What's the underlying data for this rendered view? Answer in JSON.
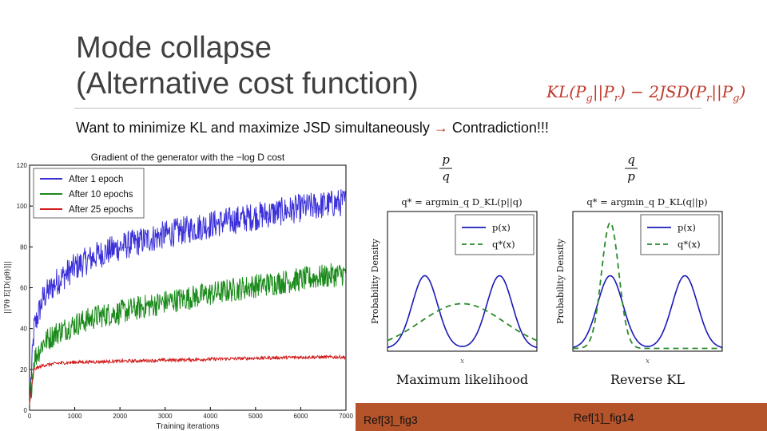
{
  "slide": {
    "title_line1": "Mode collapse",
    "title_line2": "(Alternative cost function)",
    "formula": "KL(Pg||Pr) − 2JSD(Pr||Pg)",
    "subtitle_text": "Want to minimize KL and maximize JSD simultaneously",
    "subtitle_conclusion": "Contradiction!!!",
    "ref_left": "Ref[3]_fig3",
    "ref_right": "Ref[1]_fig14",
    "accent_color": "#c0392b",
    "bar_color": "#b5532a"
  },
  "chart_data": [
    {
      "type": "line",
      "title": "Gradient of the generator with the −log D cost",
      "xlabel": "Training iterations",
      "ylabel": "||∇θ E[D(gθ)]||",
      "xlim": [
        0,
        7000
      ],
      "ylim": [
        0,
        120
      ],
      "x_ticks": [
        "0",
        "1000",
        "2000",
        "3000",
        "4000",
        "5000",
        "6000",
        "7000"
      ],
      "y_ticks": [
        "0",
        "20",
        "40",
        "60",
        "80",
        "100",
        "120"
      ],
      "legend": "top-left",
      "series": [
        {
          "name": "After 1 epoch",
          "color": "#3a2fd8",
          "x": [
            0,
            100,
            300,
            600,
            1000,
            1500,
            2000,
            3000,
            4000,
            5000,
            6000,
            7000
          ],
          "values": [
            3,
            40,
            55,
            63,
            70,
            76,
            80,
            86,
            91,
            95,
            99,
            102
          ]
        },
        {
          "name": "After 10 epochs",
          "color": "#1a8a1a",
          "x": [
            0,
            100,
            300,
            600,
            1000,
            1500,
            2000,
            3000,
            4000,
            5000,
            6000,
            7000
          ],
          "values": [
            3,
            25,
            33,
            38,
            42,
            46,
            48,
            53,
            57,
            61,
            64,
            67
          ]
        },
        {
          "name": "After 25 epochs",
          "color": "#d01c1c",
          "x": [
            0,
            100,
            300,
            600,
            1000,
            2000,
            3000,
            4000,
            5000,
            6000,
            7000
          ],
          "values": [
            3,
            20,
            22,
            23,
            23.5,
            24,
            24.5,
            25,
            25.5,
            26,
            26
          ]
        }
      ]
    },
    {
      "type": "line",
      "title": "Maximum likelihood",
      "top_fraction": "p/q",
      "objective": "q* = argmin_q D_KL(p||q)",
      "xlabel": "x",
      "ylabel": "Probability Density",
      "legend": "top-right",
      "series": [
        {
          "name": "p(x)",
          "color": "#1a1ab8",
          "style": "solid"
        },
        {
          "name": "q*(x)",
          "color": "#2a8a2a",
          "style": "dashed"
        }
      ]
    },
    {
      "type": "line",
      "title": "Reverse KL",
      "top_fraction": "q/p",
      "objective": "q* = argmin_q D_KL(q||p)",
      "xlabel": "x",
      "ylabel": "Probability Density",
      "legend": "top-right",
      "series": [
        {
          "name": "p(x)",
          "color": "#1a1ab8",
          "style": "solid"
        },
        {
          "name": "q*(x)",
          "color": "#2a8a2a",
          "style": "dashed"
        }
      ]
    }
  ]
}
